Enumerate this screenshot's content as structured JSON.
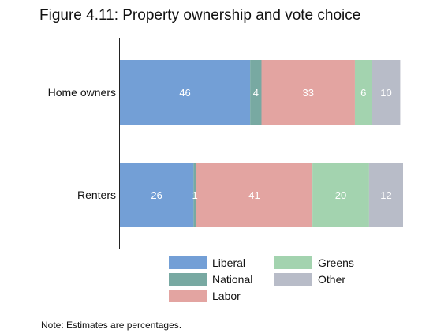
{
  "chart_data": {
    "type": "bar",
    "orientation": "horizontal",
    "stacked": true,
    "title": "Figure 4.11: Property ownership and vote choice",
    "note": "Note: Estimates are percentages.",
    "categories": [
      "Home owners",
      "Renters"
    ],
    "series": [
      {
        "name": "Liberal",
        "color": "#739fd6",
        "values": [
          46,
          26
        ],
        "labels": [
          "46",
          "26"
        ]
      },
      {
        "name": "National",
        "color": "#78a9a2",
        "values": [
          4,
          1
        ],
        "labels": [
          "4",
          "1"
        ]
      },
      {
        "name": "Labor",
        "color": "#e3a4a1",
        "values": [
          33,
          41
        ],
        "labels": [
          "33",
          "41"
        ]
      },
      {
        "name": "Greens",
        "color": "#a3d3af",
        "values": [
          6,
          20
        ],
        "labels": [
          "6",
          "20"
        ]
      },
      {
        "name": "Other",
        "color": "#b8bcc8",
        "values": [
          10,
          12
        ],
        "labels": [
          "10",
          "12"
        ]
      }
    ],
    "xlim": [
      0,
      100
    ],
    "grid": false,
    "legend_position": "bottom"
  }
}
